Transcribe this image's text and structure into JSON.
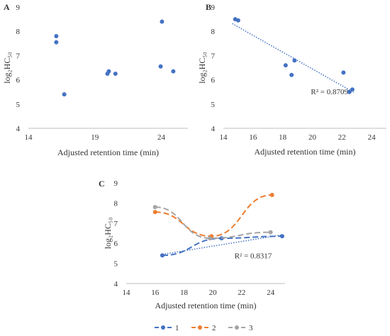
{
  "chart_data": [
    {
      "panel_label": "A",
      "type": "scatter",
      "xlabel": "Adjusted retention time (min)",
      "ylabel": "log₂HC₅₀",
      "xlim": [
        14,
        26
      ],
      "ylim": [
        4,
        9
      ],
      "xticks": [
        14,
        19,
        24
      ],
      "yticks": [
        4,
        5,
        6,
        7,
        8,
        9
      ],
      "grid": false,
      "series": [
        {
          "color": "#4472C4",
          "points": [
            [
              16.1,
              7.8
            ],
            [
              16.1,
              7.55
            ],
            [
              16.7,
              5.4
            ],
            [
              19.95,
              6.25
            ],
            [
              20.05,
              6.35
            ],
            [
              20.55,
              6.25
            ],
            [
              24.05,
              8.4
            ],
            [
              23.95,
              6.55
            ],
            [
              24.9,
              6.35
            ]
          ]
        }
      ]
    },
    {
      "panel_label": "B",
      "type": "scatter",
      "xlabel": "Adjusted retention time (min)",
      "ylabel": "log₂HC₅₀",
      "xlim": [
        14,
        25
      ],
      "ylim": [
        4,
        9
      ],
      "xticks": [
        14,
        16,
        18,
        20,
        22,
        24
      ],
      "yticks": [
        4,
        5,
        6,
        7,
        8,
        9
      ],
      "grid": false,
      "series": [
        {
          "color": "#4472C4",
          "points": [
            [
              14.8,
              8.5
            ],
            [
              15.0,
              8.45
            ],
            [
              18.2,
              6.6
            ],
            [
              18.6,
              6.2
            ],
            [
              18.8,
              6.8
            ],
            [
              22.1,
              6.3
            ],
            [
              22.5,
              5.5
            ],
            [
              22.7,
              5.6
            ]
          ]
        }
      ],
      "trendline": {
        "x": [
          14.6,
          22.8
        ],
        "y": [
          8.32,
          5.48
        ],
        "color": "#4472C4",
        "label": "R² = 0.8709"
      }
    },
    {
      "panel_label": "C",
      "type": "line",
      "xlabel": "Adjusted retention time (min)",
      "ylabel": "log₂HC₅₀",
      "xlim": [
        14,
        25
      ],
      "ylim": [
        4,
        9
      ],
      "xticks": [
        14,
        16,
        18,
        20,
        22,
        24
      ],
      "yticks": [
        4,
        5,
        6,
        7,
        8,
        9
      ],
      "grid": false,
      "legend_position": "bottom",
      "series": [
        {
          "name": "1",
          "color": "#4472C4",
          "points": [
            [
              16.5,
              5.4
            ],
            [
              20.6,
              6.25
            ],
            [
              24.8,
              6.35
            ]
          ]
        },
        {
          "name": "2",
          "color": "#ED7D31",
          "points": [
            [
              16.0,
              7.55
            ],
            [
              19.9,
              6.35
            ],
            [
              24.1,
              8.4
            ]
          ]
        },
        {
          "name": "3",
          "color": "#A5A5A5",
          "points": [
            [
              16.0,
              7.8
            ],
            [
              19.8,
              6.25
            ],
            [
              24.0,
              6.55
            ]
          ]
        }
      ],
      "trendline": {
        "x": [
          16.5,
          24.8
        ],
        "y": [
          5.45,
          6.42
        ],
        "color": "#4472C4",
        "label": "R² = 0.8317"
      }
    }
  ]
}
